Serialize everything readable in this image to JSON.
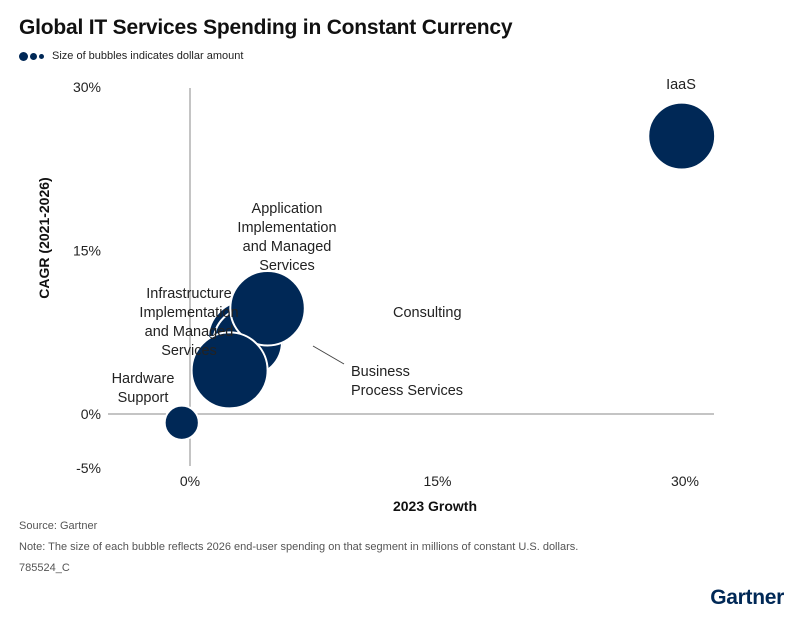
{
  "title": "Global IT Services Spending in Constant Currency",
  "legend": {
    "text": "Size of bubbles indicates dollar amount"
  },
  "chart_data": {
    "type": "scatter",
    "subtype": "bubble",
    "title": "Global IT Services Spending in Constant Currency",
    "xlabel": "2023 Growth",
    "ylabel": "CAGR (2021-2026)",
    "xlim": [
      -5,
      32
    ],
    "ylim": [
      -5,
      30
    ],
    "x_ticks": [
      0,
      15,
      30
    ],
    "x_tick_labels": [
      "0%",
      "15%",
      "30%"
    ],
    "y_ticks": [
      -5,
      0,
      15,
      30
    ],
    "y_tick_labels": [
      "-5%",
      "0%",
      "15%",
      "30%"
    ],
    "color": "#002856",
    "points": [
      {
        "name": "Hardware Support",
        "label_lines": [
          "Hardware",
          "Support"
        ],
        "x": -0.5,
        "y": -0.8,
        "size": 0.45
      },
      {
        "name": "Infrastructure Implementation and Managed Services",
        "label_lines": [
          "Infrastructure",
          "Implementation",
          "and Managed",
          "Services"
        ],
        "x": 2.4,
        "y": 4.0,
        "size": 1.0
      },
      {
        "name": "Application Implementation and Managed Services",
        "label_lines": [
          "Application",
          "Implementation",
          "and Managed",
          "Services"
        ],
        "x": 3.4,
        "y": 6.9,
        "size": 1.0
      },
      {
        "name": "Business Process Services",
        "label_lines": [
          "Business",
          "Process Services"
        ],
        "x": 3.5,
        "y": 6.6,
        "size": 0.9
      },
      {
        "name": "Consulting",
        "label_lines": [
          "Consulting"
        ],
        "x": 4.7,
        "y": 9.7,
        "size": 0.98
      },
      {
        "name": "IaaS",
        "label_lines": [
          "IaaS"
        ],
        "x": 29.8,
        "y": 25.5,
        "size": 0.88
      }
    ]
  },
  "footer": {
    "source": "Source: Gartner",
    "note": "Note: The size of each bubble reflects 2026 end-user spending on that segment in millions of constant U.S. dollars.",
    "id": "785524_C"
  },
  "brand": "Gartner"
}
